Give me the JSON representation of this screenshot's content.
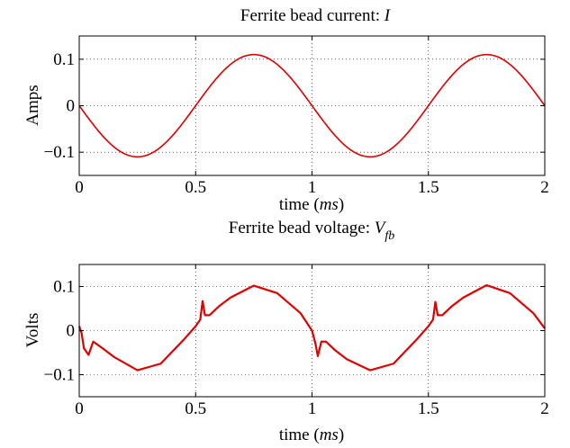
{
  "chart_data": [
    {
      "type": "line",
      "title": "Ferrite bead current: ",
      "title_symbol": "I",
      "xlabel": "time (",
      "xlabel_unit": "ms",
      "xlabel_close": ")",
      "ylabel": "Amps",
      "xlim": [
        0,
        2
      ],
      "ylim": [
        -0.15,
        0.15
      ],
      "xticks": [
        0,
        0.5,
        1,
        1.5,
        2
      ],
      "xtick_labels": [
        "0",
        "0.5",
        "1",
        "1.5",
        "2"
      ],
      "yticks": [
        -0.1,
        0,
        0.1
      ],
      "ytick_labels": [
        "−0.1",
        "0",
        "0.1"
      ],
      "grid": true,
      "series": [
        {
          "color": "#e00000",
          "amplitude": 0.11,
          "period_ms": 1.0,
          "x": [
            0,
            0.25,
            0.5,
            0.52,
            0.75,
            1.0,
            1.02,
            1.25,
            1.5,
            1.52,
            1.75,
            2.0
          ],
          "y": [
            0,
            -0.11,
            -0.005,
            0.01,
            0.11,
            0.005,
            -0.01,
            -0.11,
            -0.005,
            0.01,
            0.11,
            0
          ]
        }
      ]
    },
    {
      "type": "line",
      "title": "Ferrite bead voltage: ",
      "title_symbol": "V",
      "title_subscript": "fb",
      "xlabel": "time (",
      "xlabel_unit": "ms",
      "xlabel_close": ")",
      "ylabel": "Volts",
      "xlim": [
        0,
        2
      ],
      "ylim": [
        -0.15,
        0.15
      ],
      "xticks": [
        0,
        0.5,
        1,
        1.5,
        2
      ],
      "xtick_labels": [
        "0",
        "0.5",
        "1",
        "1.5",
        "2"
      ],
      "yticks": [
        -0.1,
        0,
        0.1
      ],
      "ytick_labels": [
        "−0.1",
        "0",
        "0.1"
      ],
      "grid": true,
      "series": [
        {
          "color": "#e00000",
          "x": [
            0,
            0.01,
            0.02,
            0.04,
            0.06,
            0.1,
            0.15,
            0.25,
            0.35,
            0.45,
            0.5,
            0.52,
            0.53,
            0.54,
            0.56,
            0.6,
            0.65,
            0.75,
            0.85,
            0.95,
            1.0,
            1.015,
            1.025,
            1.04,
            1.06,
            1.1,
            1.15,
            1.25,
            1.35,
            1.45,
            1.5,
            1.52,
            1.53,
            1.54,
            1.56,
            1.6,
            1.65,
            1.75,
            1.85,
            1.95,
            2.0
          ],
          "y": [
            0.01,
            -0.005,
            -0.04,
            -0.055,
            -0.025,
            -0.04,
            -0.06,
            -0.09,
            -0.075,
            -0.02,
            0.01,
            0.025,
            0.067,
            0.035,
            0.035,
            0.055,
            0.075,
            0.102,
            0.085,
            0.04,
            0.0,
            -0.03,
            -0.058,
            -0.025,
            -0.025,
            -0.045,
            -0.065,
            -0.09,
            -0.075,
            -0.02,
            0.01,
            0.025,
            0.065,
            0.035,
            0.035,
            0.055,
            0.075,
            0.103,
            0.085,
            0.04,
            0.005
          ]
        }
      ]
    }
  ]
}
